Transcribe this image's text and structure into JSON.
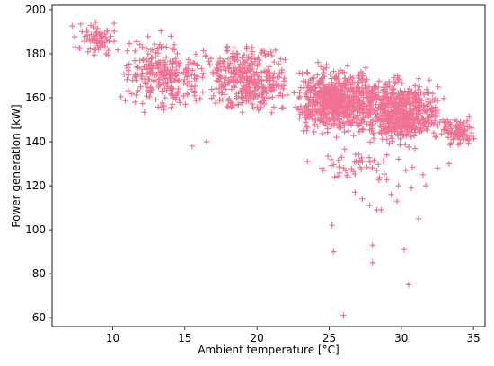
{
  "chart_data": {
    "type": "scatter",
    "title": "",
    "xlabel": "Ambient temperature [$^\\circ$C]",
    "xlabel_display": "Ambient temperature [°C]",
    "ylabel": "Power generation [kW]",
    "xlim": [
      5.8,
      35.8
    ],
    "ylim": [
      56,
      202
    ],
    "xticks": [
      10,
      15,
      20,
      25,
      30,
      35
    ],
    "yticks": [
      60,
      80,
      100,
      120,
      140,
      160,
      180,
      200
    ],
    "marker": "+",
    "color": "#f07392",
    "grid": false,
    "legend": "none",
    "clusters": [
      {
        "x_range": [
          7.0,
          10.5
        ],
        "y_range": [
          176,
          197
        ],
        "count": 70
      },
      {
        "x_range": [
          10.5,
          16.5
        ],
        "y_range": [
          150,
          192
        ],
        "count": 260
      },
      {
        "x_range": [
          16.0,
          22.5
        ],
        "y_range": [
          148,
          188
        ],
        "count": 360
      },
      {
        "x_range": [
          22.5,
          28.5
        ],
        "y_range": [
          140,
          178
        ],
        "count": 650
      },
      {
        "x_range": [
          27.0,
          33.0
        ],
        "y_range": [
          135,
          172
        ],
        "count": 550
      },
      {
        "x_range": [
          32.5,
          35.3
        ],
        "y_range": [
          136,
          153
        ],
        "count": 90
      },
      {
        "x_range": [
          23.5,
          31.5
        ],
        "y_range": [
          118,
          142
        ],
        "count": 40
      }
    ],
    "points": [
      {
        "x": 26.0,
        "y": 61
      },
      {
        "x": 30.5,
        "y": 75
      },
      {
        "x": 28.0,
        "y": 85
      },
      {
        "x": 25.3,
        "y": 90
      },
      {
        "x": 28.0,
        "y": 93
      },
      {
        "x": 30.2,
        "y": 91
      },
      {
        "x": 25.2,
        "y": 102
      },
      {
        "x": 31.2,
        "y": 105
      },
      {
        "x": 28.3,
        "y": 109
      },
      {
        "x": 28.6,
        "y": 109
      },
      {
        "x": 27.3,
        "y": 114
      },
      {
        "x": 27.8,
        "y": 111
      },
      {
        "x": 26.8,
        "y": 117
      },
      {
        "x": 29.3,
        "y": 116
      },
      {
        "x": 29.7,
        "y": 113
      },
      {
        "x": 30.7,
        "y": 119
      },
      {
        "x": 29.8,
        "y": 120
      },
      {
        "x": 31.7,
        "y": 120
      },
      {
        "x": 26.3,
        "y": 124
      },
      {
        "x": 26.0,
        "y": 128
      },
      {
        "x": 24.5,
        "y": 128
      },
      {
        "x": 23.5,
        "y": 131
      },
      {
        "x": 27.3,
        "y": 131
      },
      {
        "x": 28.3,
        "y": 127
      },
      {
        "x": 30.3,
        "y": 127
      },
      {
        "x": 32.5,
        "y": 128
      },
      {
        "x": 33.3,
        "y": 130
      },
      {
        "x": 15.5,
        "y": 138
      },
      {
        "x": 16.5,
        "y": 140
      },
      {
        "x": 31.5,
        "y": 125
      }
    ]
  }
}
